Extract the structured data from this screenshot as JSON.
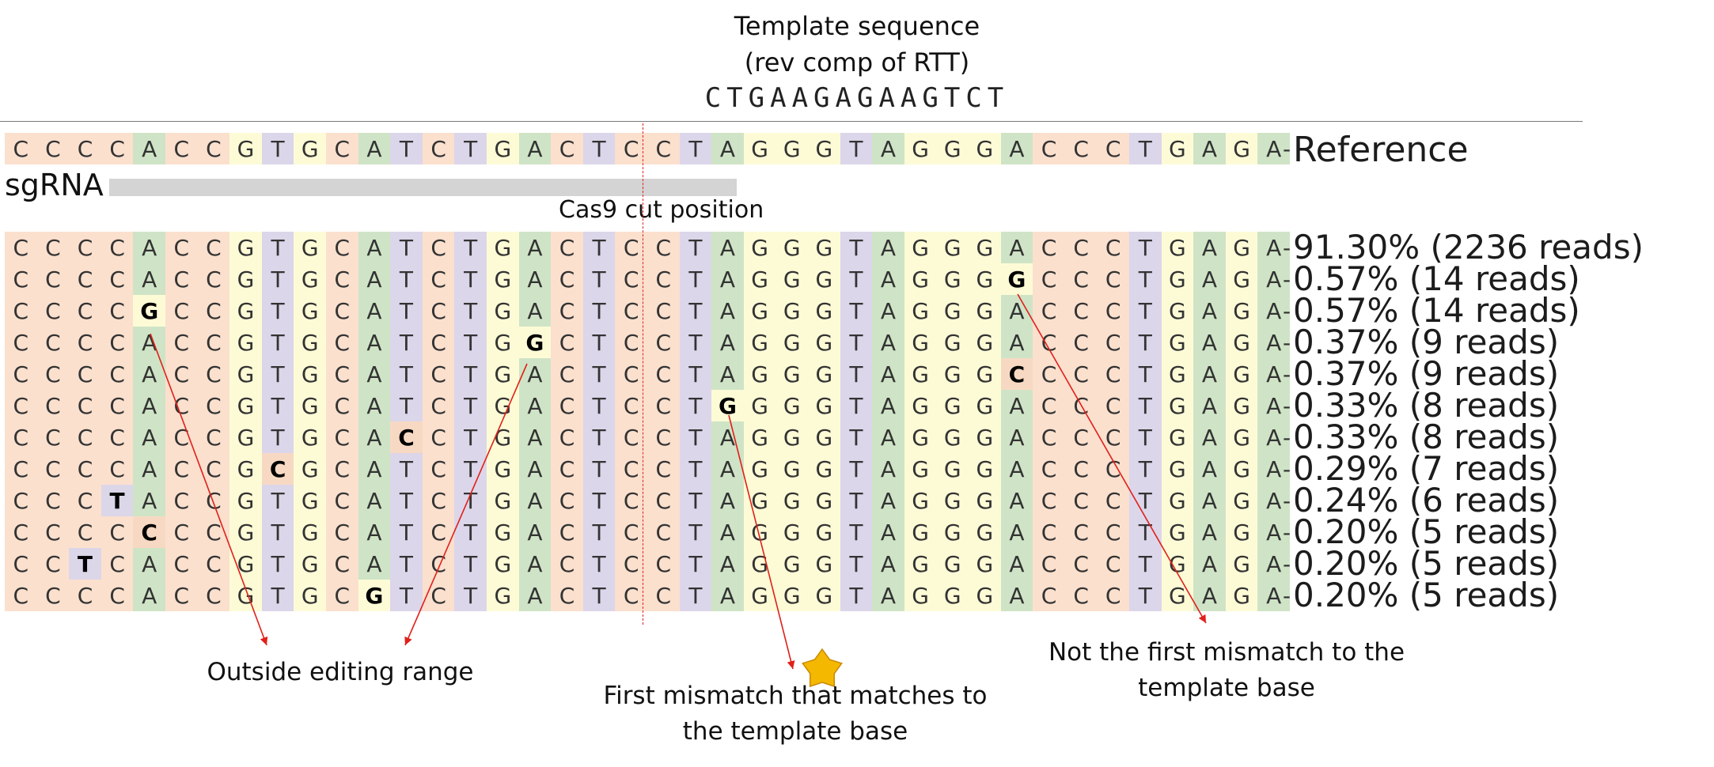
{
  "header": {
    "title_line1": "Template sequence",
    "title_line2": "(rev comp of RTT)",
    "template_sequence": "CTGAAGAGAAGTCT"
  },
  "reference": {
    "label": "Reference",
    "sequence": "CCCCACCGTGCATCTGACTCCTAGGGTAGGGACCCTGAGA"
  },
  "sgrna": {
    "label": "sgRNA"
  },
  "cas9": {
    "label": "Cas9 cut position"
  },
  "base_colors": {
    "A": "#cfe4c6",
    "C": "#fbe0ce",
    "G": "#fdfbd6",
    "T": "#dcd6ea"
  },
  "alignment_rows": [
    {
      "label": "91.30% (2236 reads)",
      "sub_index": null,
      "sub_base": ""
    },
    {
      "label": "0.57% (14 reads)",
      "sub_index": 31,
      "sub_base": "G"
    },
    {
      "label": "0.57% (14 reads)",
      "sub_index": 4,
      "sub_base": "G"
    },
    {
      "label": "0.37% (9 reads)",
      "sub_index": 16,
      "sub_base": "G"
    },
    {
      "label": "0.37% (9 reads)",
      "sub_index": 31,
      "sub_base": "C"
    },
    {
      "label": "0.33% (8 reads)",
      "sub_index": 22,
      "sub_base": "G"
    },
    {
      "label": "0.33% (8 reads)",
      "sub_index": 12,
      "sub_base": "C"
    },
    {
      "label": "0.29% (7 reads)",
      "sub_index": 8,
      "sub_base": "C"
    },
    {
      "label": "0.24% (6 reads)",
      "sub_index": 3,
      "sub_base": "T"
    },
    {
      "label": "0.20% (5 reads)",
      "sub_index": 4,
      "sub_base": "C"
    },
    {
      "label": "0.20% (5 reads)",
      "sub_index": 2,
      "sub_base": "T"
    },
    {
      "label": "0.20% (5 reads)",
      "sub_index": 11,
      "sub_base": "G"
    }
  ],
  "annotations": {
    "outside_range": "Outside editing range",
    "first_match_line1": "First mismatch that matches to",
    "first_match_line2": "the template base",
    "not_first_line1": "Not the first mismatch to the",
    "not_first_line2": "template base"
  },
  "colors": {
    "arrow": "#e0201a",
    "star": "#f5b800",
    "star_outline": "#c78a00"
  }
}
